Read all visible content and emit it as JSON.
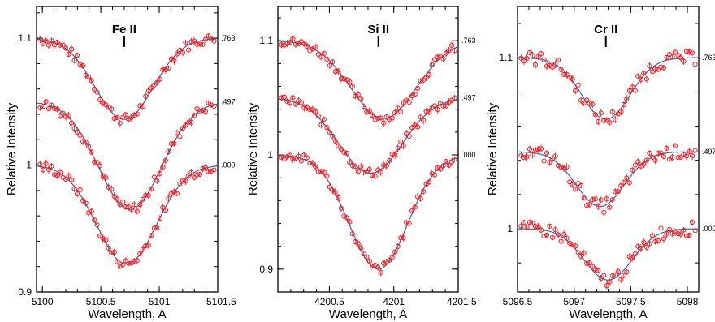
{
  "chart_data": [
    {
      "type": "scatter",
      "title": "Fe II",
      "xlabel": "Wavelength, A",
      "ylabel": "Relative Intensity",
      "xlim": [
        5099.95,
        5101.5
      ],
      "ylim": [
        0.9,
        1.125
      ],
      "xticks": [
        5100,
        5100.5,
        5101,
        5101.5
      ],
      "xtick_labels": [
        "5100",
        "5100.5",
        "5101",
        "5101.5"
      ],
      "yticks": [
        0.9,
        1,
        1.1
      ],
      "ytick_labels": [
        "0.9",
        "1",
        "1.1"
      ],
      "line_center": 5100.7,
      "series": [
        {
          "name": ".763",
          "continuum": 1.1,
          "depth": 0.064,
          "center": 5100.7,
          "width": 0.35
        },
        {
          "name": ".497",
          "continuum": 1.05,
          "depth": 0.085,
          "center": 5100.75,
          "width": 0.38
        },
        {
          "name": ".000",
          "continuum": 1.0,
          "depth": 0.078,
          "center": 5100.72,
          "width": 0.36
        }
      ],
      "colors": {
        "observed": "#e8262a",
        "model": "#3f5fa6"
      }
    },
    {
      "type": "scatter",
      "title": "Si II",
      "xlabel": "Wavelength, A",
      "ylabel": "Relative Intensity",
      "xlim": [
        4200.1,
        4201.5
      ],
      "ylim": [
        0.88,
        1.13
      ],
      "xticks": [
        4200.5,
        4201,
        4201.5
      ],
      "xtick_labels": [
        "4200.5",
        "4201",
        "4201.5"
      ],
      "yticks": [
        0.9,
        1,
        1.1
      ],
      "ytick_labels": [
        "0.9",
        "1",
        "1.1"
      ],
      "line_center": 4200.88,
      "series": [
        {
          "name": ".763",
          "continuum": 1.1,
          "depth": 0.068,
          "center": 4200.92,
          "width": 0.36
        },
        {
          "name": ".497",
          "continuum": 1.05,
          "depth": 0.066,
          "center": 4200.82,
          "width": 0.35
        },
        {
          "name": ".000",
          "continuum": 1.0,
          "depth": 0.1,
          "center": 4200.88,
          "width": 0.32
        }
      ],
      "colors": {
        "observed": "#e8262a",
        "model": "#3f5fa6"
      }
    },
    {
      "type": "scatter",
      "title": "Cr II",
      "xlabel": "Wavelength, A",
      "ylabel": "Relative Intensity",
      "xlim": [
        5096.5,
        5098.1
      ],
      "ylim": [
        0.963,
        1.13
      ],
      "xticks": [
        5096.5,
        5097,
        5097.5,
        5098
      ],
      "xtick_labels": [
        "5096.5",
        "5097",
        "5097.5",
        "5098"
      ],
      "yticks": [
        1,
        1.1
      ],
      "ytick_labels": [
        "1",
        "1.1"
      ],
      "line_center": 5097.28,
      "series": [
        {
          "name": ".763",
          "continuum": 1.1,
          "depth": 0.036,
          "center": 5097.28,
          "width": 0.3
        },
        {
          "name": ".497",
          "continuum": 1.045,
          "depth": 0.032,
          "center": 5097.23,
          "width": 0.3
        },
        {
          "name": ".000",
          "continuum": 1.0,
          "depth": 0.03,
          "center": 5097.3,
          "width": 0.3
        }
      ],
      "colors": {
        "observed": "#e8262a",
        "model": "#3f5fa6"
      }
    }
  ]
}
